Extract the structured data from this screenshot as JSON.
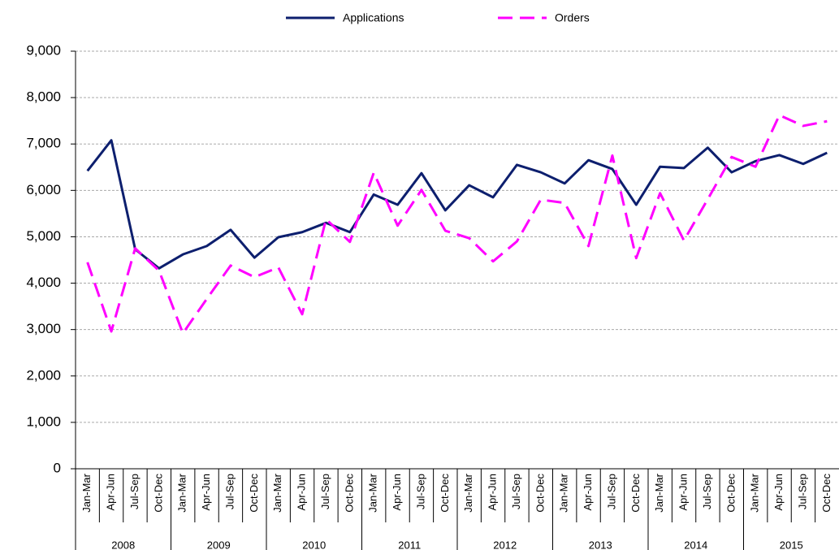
{
  "chart_data": {
    "type": "line",
    "categories": [
      "Jan-Mar",
      "Apr-Jun",
      "Jul-Sep",
      "Oct-Dec",
      "Jan-Mar",
      "Apr-Jun",
      "Jul-Sep",
      "Oct-Dec",
      "Jan-Mar",
      "Apr-Jun",
      "Jul-Sep",
      "Oct-Dec",
      "Jan-Mar",
      "Apr-Jun",
      "Jul-Sep",
      "Oct-Dec",
      "Jan-Mar",
      "Apr-Jun",
      "Jul-Sep",
      "Oct-Dec",
      "Jan-Mar",
      "Apr-Jun",
      "Jul-Sep",
      "Oct-Dec",
      "Jan-Mar",
      "Apr-Jun",
      "Jul-Sep",
      "Oct-Dec",
      "Jan-Mar",
      "Apr-Jun",
      "Jul-Sep",
      "Oct-Dec"
    ],
    "groups": [
      "2008",
      "2009",
      "2010",
      "2011",
      "2012",
      "2013",
      "2014",
      "2015"
    ],
    "series": [
      {
        "name": "Applications",
        "color": "#0d1f6e",
        "dash": false,
        "values": [
          6420,
          7080,
          4730,
          4320,
          4620,
          4800,
          5150,
          4550,
          4990,
          5100,
          5300,
          5100,
          5910,
          5690,
          6370,
          5570,
          6110,
          5850,
          6550,
          6390,
          6150,
          6650,
          6460,
          5690,
          6510,
          6480,
          6920,
          6390,
          6630,
          6760,
          6570,
          6810
        ]
      },
      {
        "name": "Orders",
        "color": "#ff00ff",
        "dash": true,
        "values": [
          4450,
          2960,
          4750,
          4270,
          2920,
          3660,
          4380,
          4130,
          4340,
          3330,
          5380,
          4890,
          6380,
          5240,
          6010,
          5130,
          4970,
          4470,
          4900,
          5800,
          5730,
          4800,
          6750,
          4540,
          5940,
          4920,
          5810,
          6720,
          6510,
          7620,
          7390,
          7490
        ]
      }
    ],
    "ylim": [
      0,
      9000
    ],
    "yticks": [
      0,
      {
        "value": 1000,
        "label": "1,000"
      },
      {
        "value": 2000,
        "label": "2,000"
      },
      {
        "value": 3000,
        "label": "3,000"
      },
      {
        "value": 4000,
        "label": "4,000"
      },
      {
        "value": 5000,
        "label": "5,000"
      },
      {
        "value": 6000,
        "label": "6,000"
      },
      {
        "value": 7000,
        "label": "7,000"
      },
      {
        "value": 8000,
        "label": "8,000"
      },
      {
        "value": 9000,
        "label": "9,000"
      }
    ],
    "grid": true,
    "legend": "top"
  }
}
